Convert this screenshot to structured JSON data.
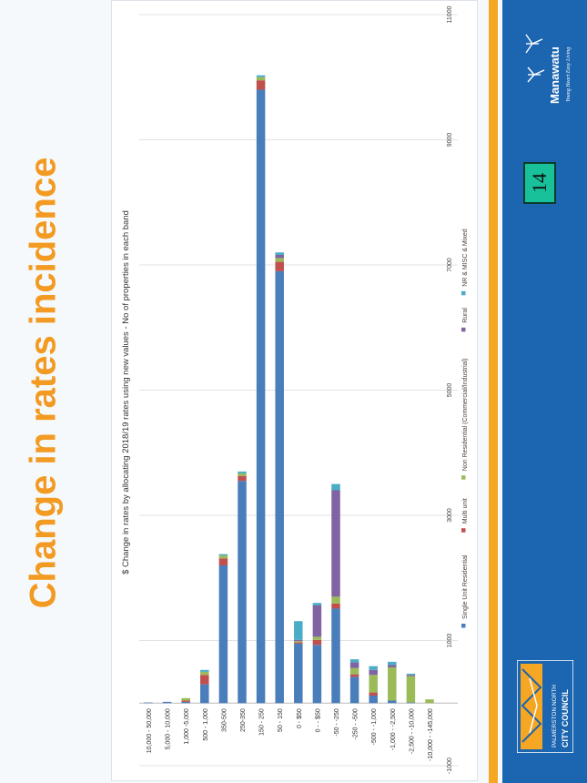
{
  "title": "Change in rates incidence",
  "page_number": "14",
  "logos": {
    "manawatu_text": "Manawatu",
    "manawatu_tagline": "Young Heart Easy Living",
    "council_line1": "PALMERSTON NORTH",
    "council_line2": "CITY COUNCIL"
  },
  "colors": {
    "title": "#f29a21",
    "accent_bar": "#f5a623",
    "panel": "#1c65b0",
    "badge": "#18c19a"
  },
  "chart_data": {
    "type": "bar",
    "orientation": "horizontal",
    "stacked": true,
    "title": "$ Change in rates by allocating 2018/19 rates using new values - No of properties in each band",
    "categories": [
      "10,000 - 50,000",
      "5,000 - 10,000",
      "1,000 -5,000",
      "500 - 1,000",
      "350-500",
      "250-350",
      "150 - 250",
      "50 - 150",
      "0 - $50",
      "0 - - $50",
      "-50 - -250",
      "-250 - -500",
      "-500 - -1,000",
      "-1,000 - -2,500",
      "-2,500 - -10,000",
      "-10,000 - -145,000"
    ],
    "xlim": [
      -1000,
      11000
    ],
    "x_ticks": [
      "-1000",
      "1000",
      "3000",
      "5000",
      "7000",
      "9000",
      "11000"
    ],
    "grid": true,
    "legend_position": "bottom",
    "series": [
      {
        "name": "Single Unit Residential",
        "color": "#4a7ebb",
        "values": [
          10,
          20,
          20,
          300,
          2200,
          3550,
          9800,
          6900,
          950,
          930,
          1510,
          420,
          120,
          40,
          10,
          0
        ]
      },
      {
        "name": "Multi unit",
        "color": "#c0504d",
        "values": [
          0,
          0,
          20,
          150,
          110,
          80,
          150,
          150,
          20,
          80,
          80,
          40,
          50,
          0,
          0,
          0
        ]
      },
      {
        "name": "Non Residential (Commercial/Industrial)",
        "color": "#9bbb59",
        "values": [
          0,
          0,
          40,
          50,
          50,
          40,
          50,
          60,
          20,
          50,
          110,
          100,
          280,
          530,
          420,
          60
        ]
      },
      {
        "name": "Rural",
        "color": "#8064a2",
        "values": [
          0,
          0,
          0,
          0,
          0,
          0,
          0,
          50,
          20,
          500,
          1700,
          90,
          80,
          40,
          20,
          0
        ]
      },
      {
        "name": "NR & MISC & Mixed",
        "color": "#4bacc6",
        "values": [
          0,
          0,
          0,
          30,
          20,
          30,
          30,
          40,
          300,
          40,
          100,
          50,
          60,
          50,
          20,
          0
        ]
      }
    ]
  }
}
